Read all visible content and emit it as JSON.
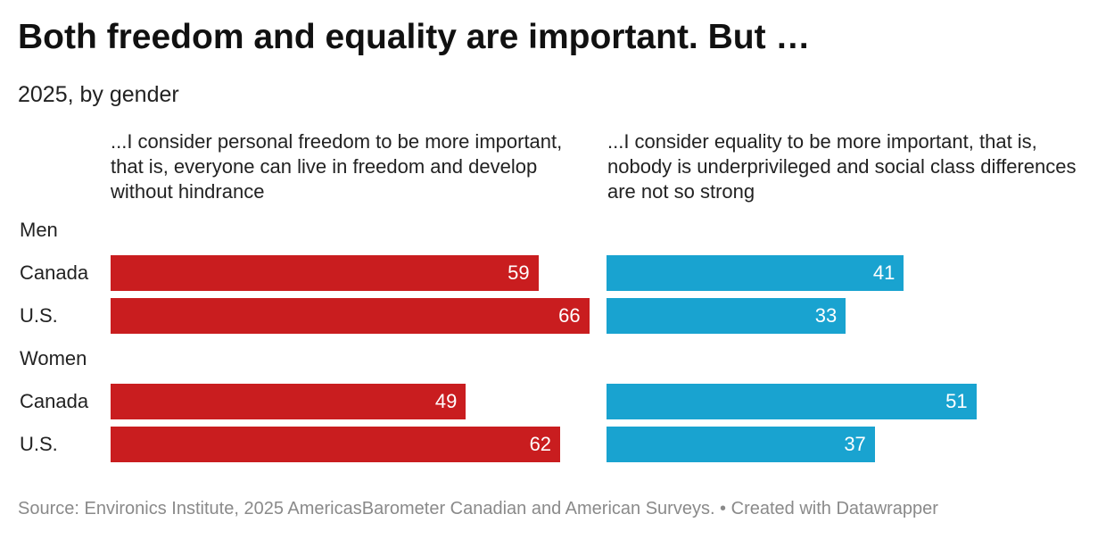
{
  "title": "Both freedom and equality are important. But …",
  "subtitle": "2025, by gender",
  "footer": "Source: Environics Institute, 2025 AmericasBarometer Canadian and American Surveys. • Created with Datawrapper",
  "chart_data": {
    "type": "bar",
    "orientation": "horizontal",
    "title": "Both freedom and equality are important. But …",
    "subtitle": "2025, by gender",
    "xlim": [
      0,
      100
    ],
    "groups": [
      "Men",
      "Women"
    ],
    "categories": [
      "Canada",
      "U.S."
    ],
    "series": [
      {
        "name": "...I consider personal freedom to be more important, that is, everyone can live in freedom and develop without hindrance",
        "color": "#c91d1f",
        "values": [
          {
            "group": "Men",
            "category": "Canada",
            "value": 59
          },
          {
            "group": "Men",
            "category": "U.S.",
            "value": 66
          },
          {
            "group": "Women",
            "category": "Canada",
            "value": 49
          },
          {
            "group": "Women",
            "category": "U.S.",
            "value": 62
          }
        ]
      },
      {
        "name": "...I consider equality to be more important, that is, nobody is underprivileged and social class differences are not so strong",
        "color": "#19a3d0",
        "values": [
          {
            "group": "Men",
            "category": "Canada",
            "value": 41
          },
          {
            "group": "Men",
            "category": "U.S.",
            "value": 33
          },
          {
            "group": "Women",
            "category": "Canada",
            "value": 51
          },
          {
            "group": "Women",
            "category": "U.S.",
            "value": 37
          }
        ]
      }
    ],
    "source": "Source: Environics Institute, 2025 AmericasBarometer Canadian and American Surveys. • Created with Datawrapper"
  }
}
